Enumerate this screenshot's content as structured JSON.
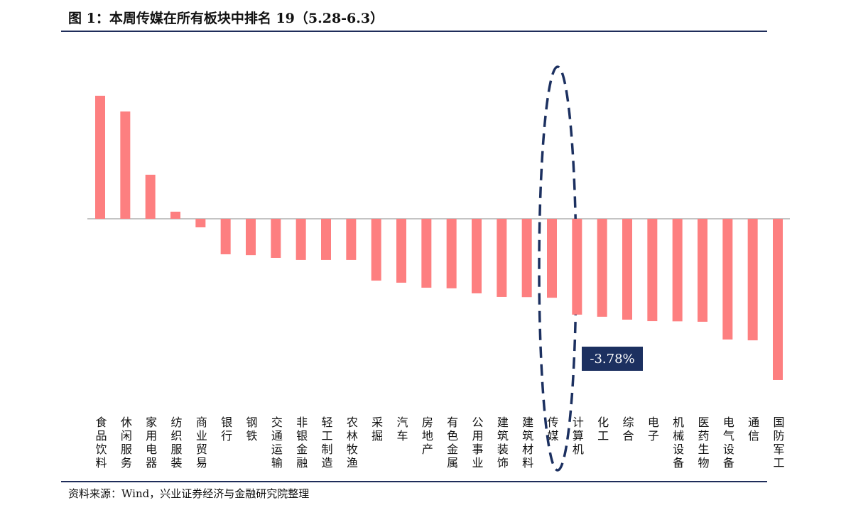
{
  "chart_data": {
    "type": "bar",
    "title": "图 1：本周传媒在所有板块中排名 19（5.28-6.3）",
    "source": "资料来源：Wind，兴业证券经济与金融研究院整理",
    "categories": [
      "食品饮料",
      "休闲服务",
      "家用电器",
      "纺织服装",
      "商业贸易",
      "银行",
      "钢铁",
      "交通运输",
      "非银金融",
      "轻工制造",
      "农林牧渔",
      "采掘",
      "汽车",
      "房地产",
      "有色金属",
      "公用事业",
      "建筑装饰",
      "建筑材料",
      "传媒",
      "计算机",
      "化工",
      "综合",
      "电子",
      "机械设备",
      "医药生物",
      "电气设备",
      "通信",
      "国防军工"
    ],
    "values": [
      5.89,
      5.14,
      2.11,
      0.34,
      -0.41,
      -1.7,
      -1.74,
      -1.87,
      -1.97,
      -1.97,
      -1.97,
      -2.96,
      -3.06,
      -3.3,
      -3.33,
      -3.57,
      -3.74,
      -3.75,
      -3.78,
      -4.59,
      -4.69,
      -4.83,
      -4.9,
      -4.91,
      -4.93,
      -5.78,
      -5.82,
      -7.72
    ],
    "value_labels": [
      null,
      null,
      null,
      null,
      null,
      null,
      null,
      null,
      null,
      null,
      null,
      null,
      null,
      null,
      null,
      null,
      null,
      null,
      "-3.78%",
      null,
      null,
      null,
      null,
      null,
      null,
      null,
      null,
      null
    ],
    "color": "#fd7f80"
  }
}
